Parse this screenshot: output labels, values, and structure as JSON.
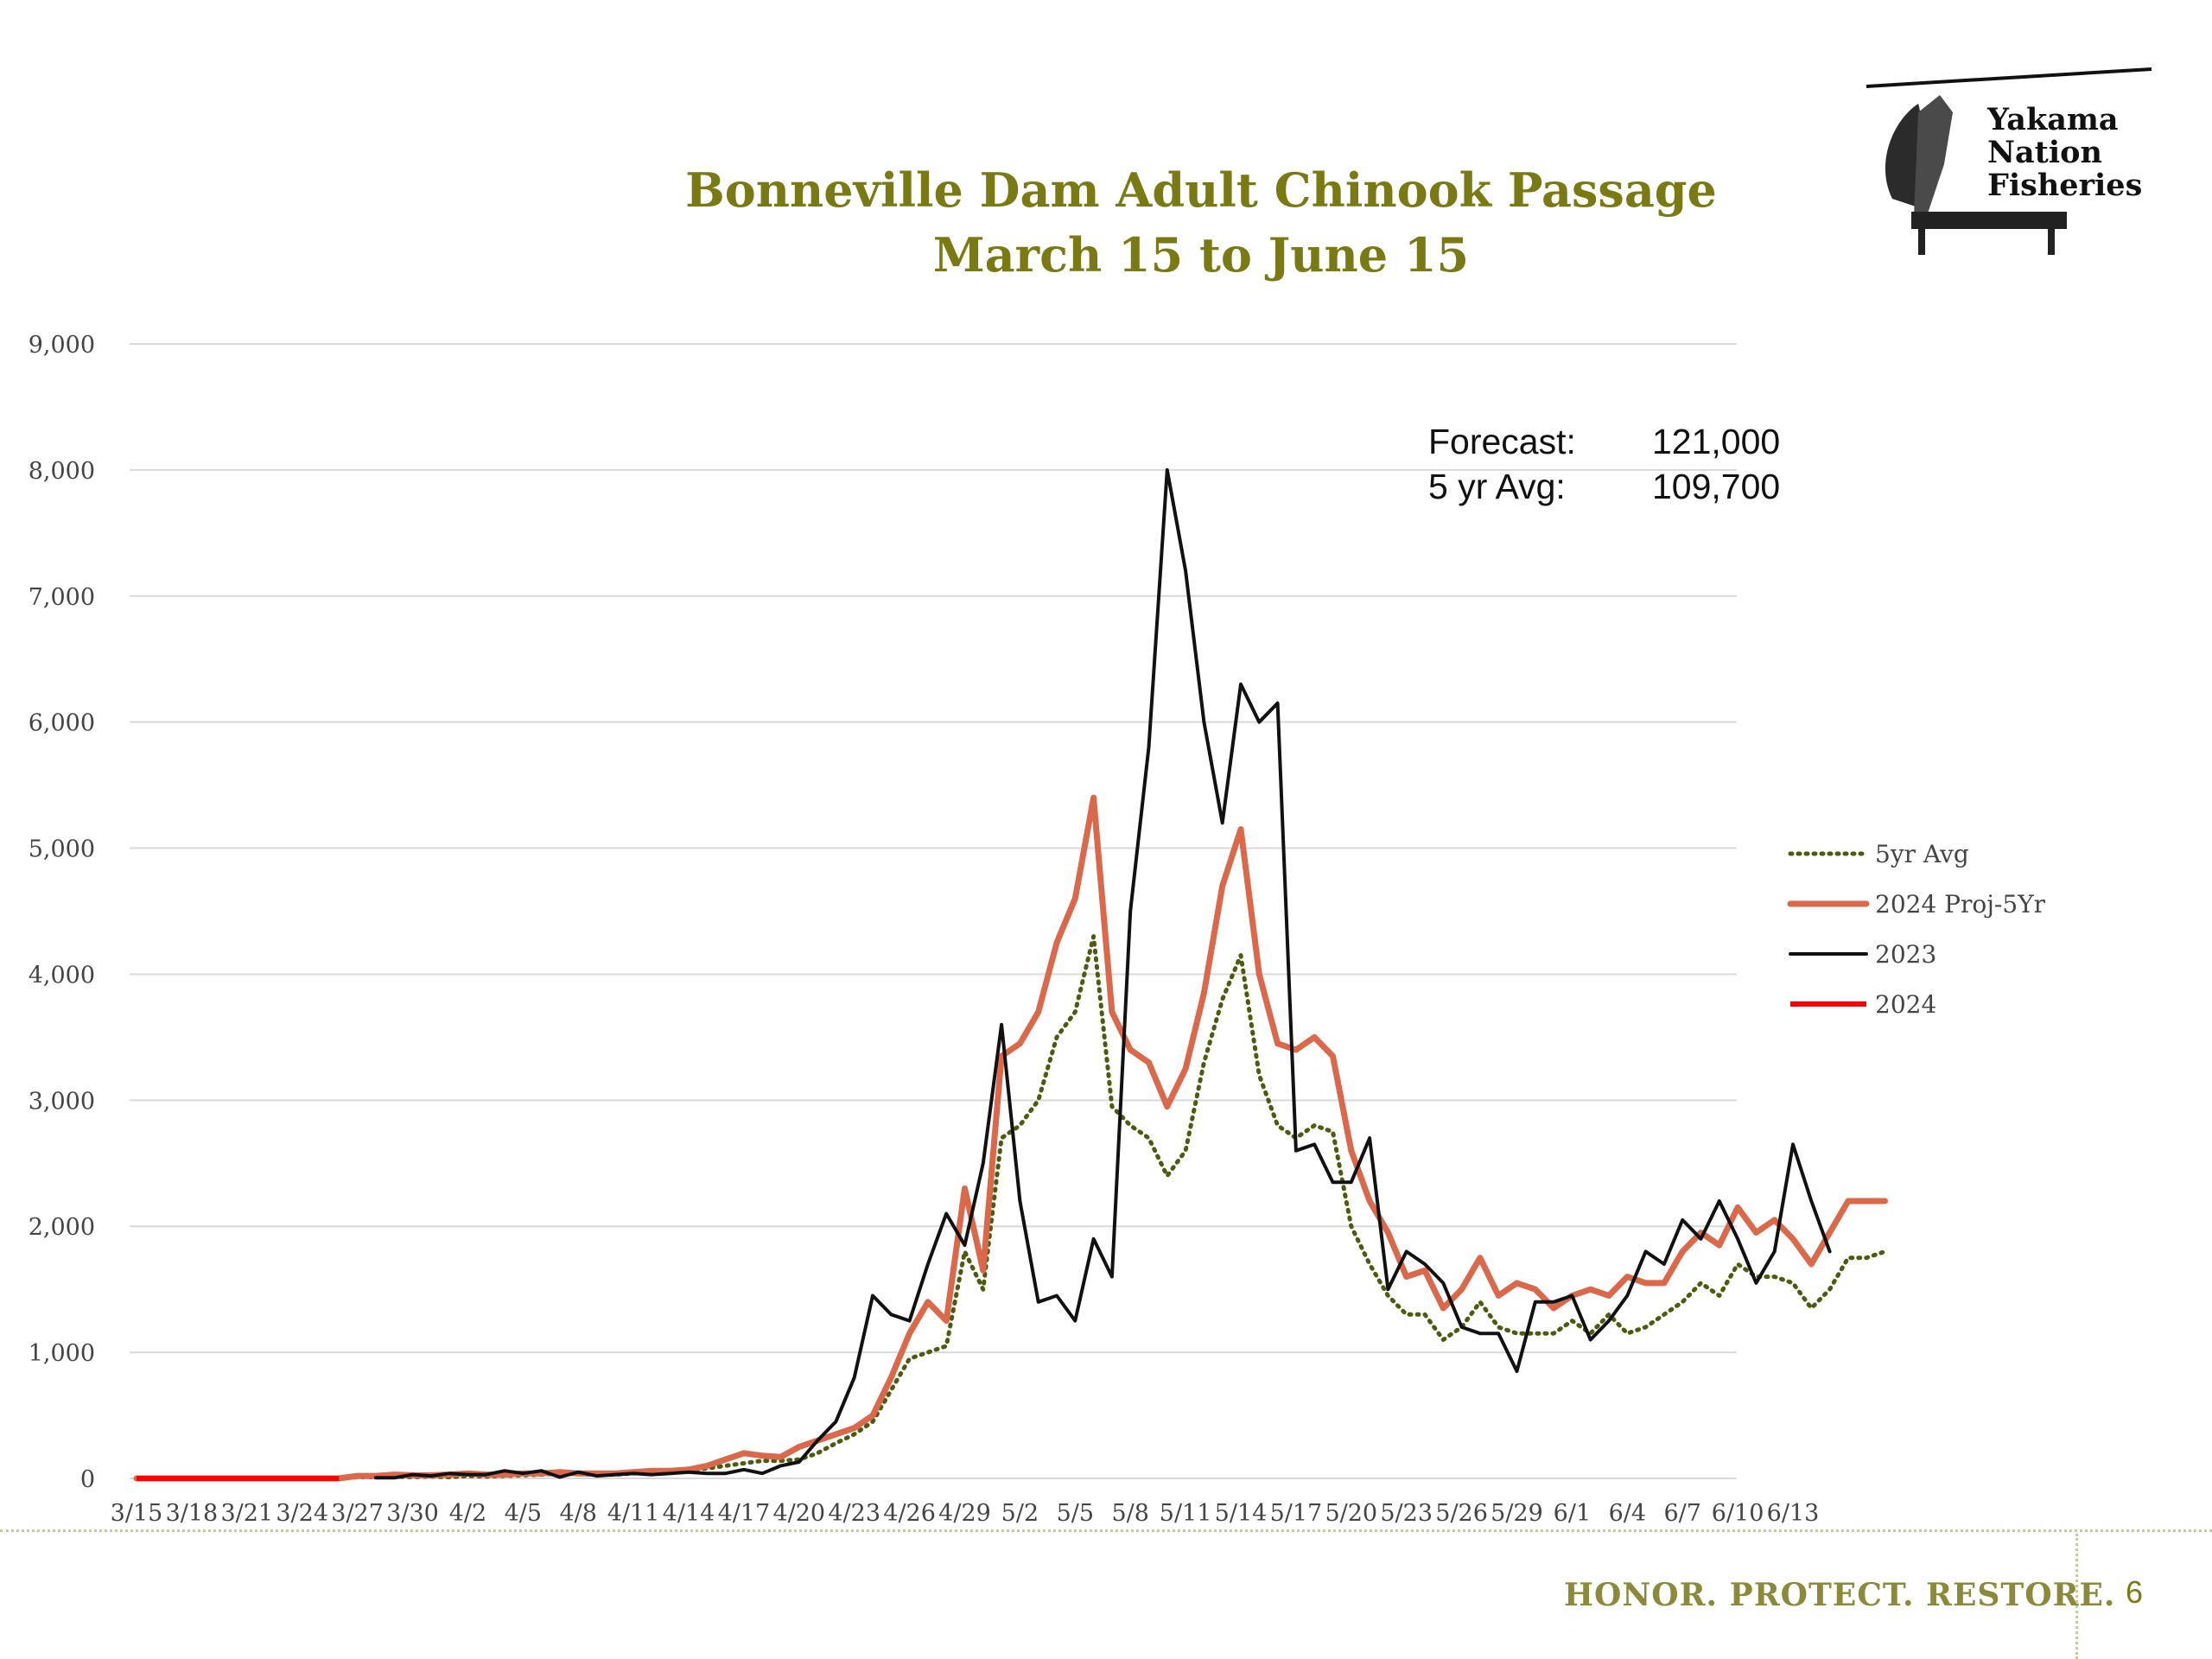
{
  "slide": {
    "page_number": "6",
    "tagline": "HONOR. PROTECT. RESTORE.",
    "logo": {
      "lines": [
        "Yakama",
        "Nation",
        "Fisheries"
      ]
    },
    "forecast_box": {
      "forecast_label": "Forecast:",
      "forecast_value": "121,000",
      "avg_label": "5 yr Avg:",
      "avg_value": "109,700"
    },
    "colors": {
      "title": "#7a7a14",
      "tagline": "#8a8a3a",
      "series_5yr_avg": "#4d5a10",
      "series_2024_proj": "#d9694a",
      "series_2023": "#111111",
      "series_2024": "#ff0000",
      "gridline": "#d9d9d9"
    }
  },
  "chart_data": {
    "type": "line",
    "title": "Bonneville Dam Adult Chinook Passage",
    "subtitle": "March 15 to June 15",
    "xlabel": "",
    "ylabel": "",
    "ylim": [
      0,
      9000
    ],
    "grid": true,
    "legend_position": "right",
    "x_tick_labels": [
      "3/15",
      "3/18",
      "3/21",
      "3/24",
      "3/27",
      "3/30",
      "4/2",
      "4/5",
      "4/8",
      "4/11",
      "4/14",
      "4/17",
      "4/20",
      "4/23",
      "4/26",
      "4/29",
      "5/2",
      "5/5",
      "5/8",
      "5/11",
      "5/14",
      "5/17",
      "5/20",
      "5/23",
      "5/26",
      "5/29",
      "6/1",
      "6/4",
      "6/7",
      "6/10",
      "6/13"
    ],
    "y_tick_labels": [
      "0",
      "1,000",
      "2,000",
      "3,000",
      "4,000",
      "5,000",
      "6,000",
      "7,000",
      "8,000",
      "9,000"
    ],
    "y_ticks": [
      0,
      1000,
      2000,
      3000,
      4000,
      5000,
      6000,
      7000,
      8000,
      9000
    ],
    "x_start": "3/15",
    "series": [
      {
        "name": "5yr Avg",
        "style": "dotted",
        "values": [
          0,
          0,
          0,
          0,
          0,
          0,
          0,
          0,
          0,
          0,
          0,
          0,
          10,
          10,
          15,
          10,
          15,
          10,
          20,
          15,
          20,
          25,
          30,
          40,
          35,
          30,
          30,
          40,
          45,
          50,
          60,
          80,
          100,
          120,
          140,
          140,
          150,
          200,
          280,
          350,
          450,
          700,
          950,
          1000,
          1050,
          1800,
          1500,
          2700,
          2800,
          3000,
          3500,
          3700,
          4300,
          2950,
          2800,
          2700,
          2400,
          2600,
          3300,
          3800,
          4150,
          3200,
          2800,
          2700,
          2800,
          2750,
          2000,
          1700,
          1450,
          1300,
          1300,
          1100,
          1200,
          1400,
          1200,
          1150,
          1150,
          1150,
          1250,
          1150,
          1300,
          1150,
          1200,
          1300,
          1400,
          1550,
          1450,
          1700,
          1600,
          1600,
          1550,
          1350,
          1500,
          1750,
          1750,
          1800
        ]
      },
      {
        "name": "2024 Proj-5Yr",
        "style": "solid",
        "values": [
          0,
          0,
          0,
          0,
          0,
          0,
          0,
          0,
          0,
          0,
          0,
          0,
          20,
          20,
          30,
          25,
          25,
          30,
          40,
          30,
          30,
          40,
          40,
          50,
          40,
          40,
          40,
          50,
          60,
          60,
          70,
          100,
          150,
          200,
          180,
          170,
          250,
          300,
          350,
          400,
          500,
          800,
          1150,
          1400,
          1250,
          2300,
          1650,
          3350,
          3450,
          3700,
          4250,
          4600,
          5400,
          3700,
          3400,
          3300,
          2950,
          3250,
          3850,
          4700,
          5150,
          4000,
          3450,
          3400,
          3500,
          3350,
          2600,
          2200,
          1950,
          1600,
          1650,
          1350,
          1500,
          1750,
          1450,
          1550,
          1500,
          1350,
          1450,
          1500,
          1450,
          1600,
          1550,
          1550,
          1800,
          1950,
          1850,
          2150,
          1950,
          2050,
          1900,
          1700,
          1950,
          2200,
          2200,
          2200
        ]
      },
      {
        "name": "2023",
        "style": "solid",
        "values": [
          null,
          null,
          null,
          null,
          null,
          null,
          null,
          null,
          null,
          null,
          null,
          null,
          null,
          5,
          5,
          30,
          20,
          40,
          30,
          30,
          60,
          40,
          60,
          10,
          50,
          20,
          30,
          40,
          30,
          40,
          50,
          40,
          40,
          70,
          40,
          100,
          130,
          300,
          450,
          800,
          1450,
          1300,
          1250,
          1700,
          2100,
          1850,
          2500,
          3600,
          2200,
          1400,
          1450,
          1250,
          1900,
          1600,
          4500,
          5800,
          8000,
          7200,
          6000,
          5200,
          6300,
          6000,
          6150,
          2600,
          2650,
          2350,
          2350,
          2700,
          1500,
          1800,
          1700,
          1550,
          1200,
          1150,
          1150,
          850,
          1400,
          1400,
          1450,
          1100,
          1250,
          1450,
          1800,
          1700,
          2050,
          1900,
          2200,
          1900,
          1550,
          1800,
          2650,
          2200,
          1800
        ]
      },
      {
        "name": "2024",
        "style": "solid",
        "values": [
          0,
          0,
          0,
          0,
          0,
          0,
          0,
          0,
          0,
          0,
          0,
          0
        ]
      }
    ]
  }
}
